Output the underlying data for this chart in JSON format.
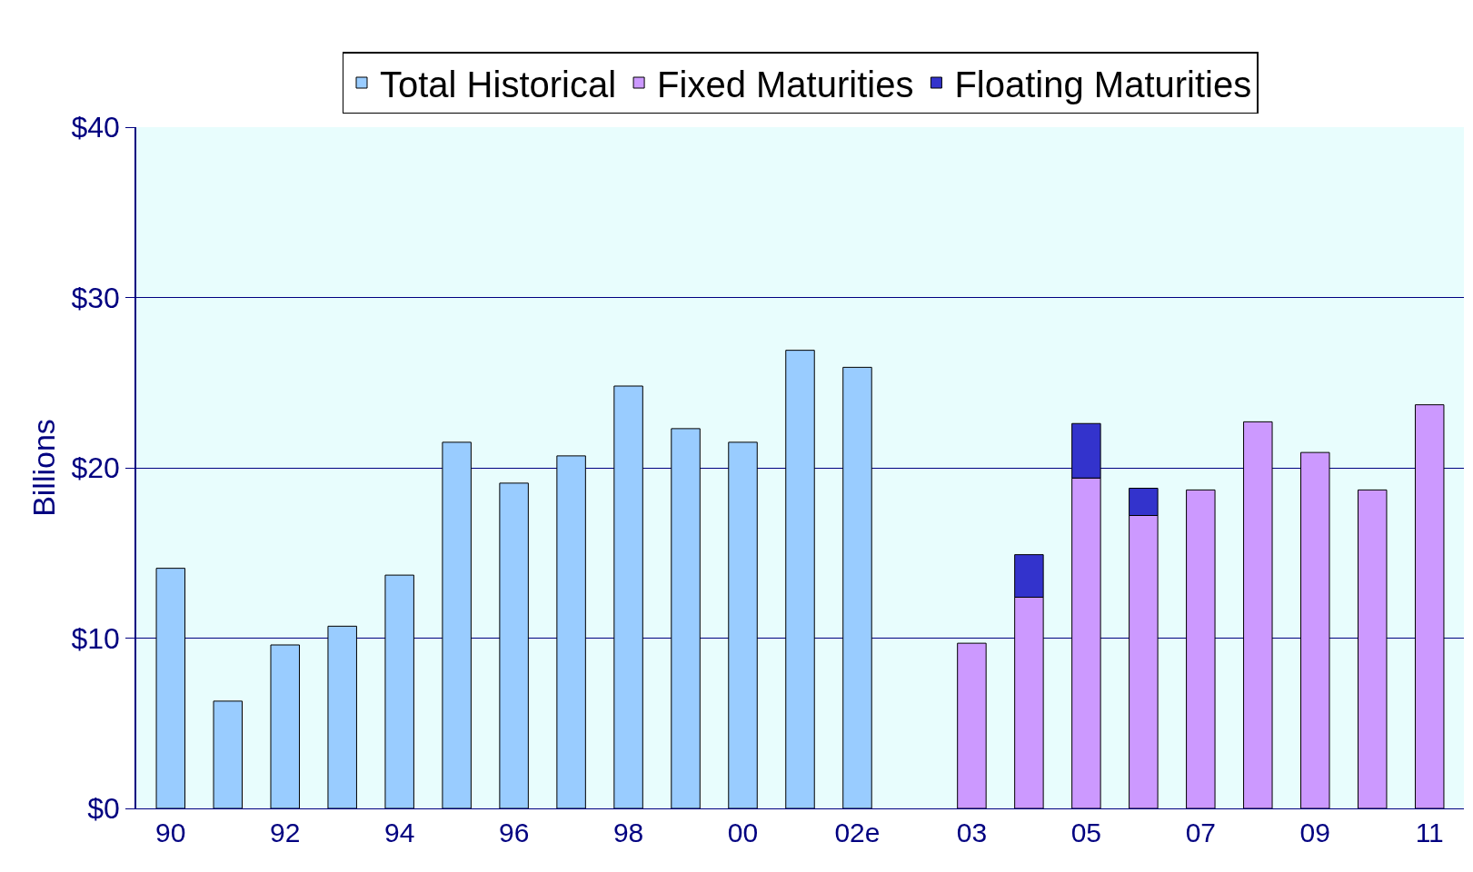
{
  "chart_data": {
    "type": "bar",
    "stacked": true,
    "ylabel": "Billions",
    "categories": [
      "90",
      null,
      "92",
      null,
      "94",
      null,
      "96",
      null,
      "98",
      null,
      "00",
      null,
      "02e",
      null,
      "03",
      null,
      "05",
      null,
      "07",
      null,
      "09",
      null,
      "11"
    ],
    "series": [
      {
        "name": "Total Historical",
        "color": "#99ccff",
        "values": [
          14.1,
          6.3,
          9.6,
          10.7,
          13.7,
          21.5,
          19.1,
          20.7,
          24.8,
          22.3,
          21.5,
          26.9,
          25.9,
          null,
          null,
          null,
          null,
          null,
          null,
          null,
          null,
          null,
          null
        ]
      },
      {
        "name": "Fixed Maturities",
        "color": "#cc99ff",
        "values": [
          null,
          null,
          null,
          null,
          null,
          null,
          null,
          null,
          null,
          null,
          null,
          null,
          null,
          null,
          9.7,
          12.4,
          19.4,
          17.2,
          18.7,
          22.7,
          20.9,
          18.7,
          23.7
        ]
      },
      {
        "name": "Floating Maturities",
        "color": "#3333cc",
        "values": [
          null,
          null,
          null,
          null,
          null,
          null,
          null,
          null,
          null,
          null,
          null,
          null,
          null,
          null,
          null,
          2.5,
          3.2,
          1.6,
          null,
          null,
          null,
          null,
          null
        ]
      }
    ],
    "ylim": [
      0,
      40
    ],
    "yticks": [
      {
        "value": 0,
        "label": "$0"
      },
      {
        "value": 10,
        "label": "$10"
      },
      {
        "value": 20,
        "label": "$20"
      },
      {
        "value": 30,
        "label": "$30"
      },
      {
        "value": 40,
        "label": "$40"
      }
    ],
    "grid": "y",
    "legend": "top"
  }
}
